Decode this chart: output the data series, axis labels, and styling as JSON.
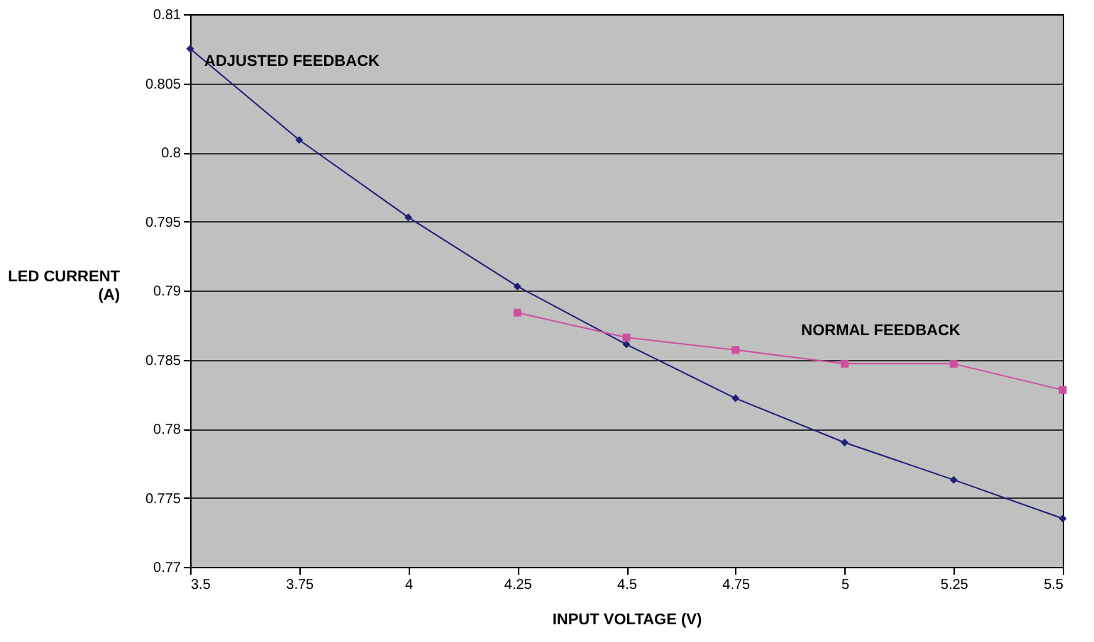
{
  "chart_data": {
    "type": "line",
    "xlabel": "INPUT VOLTAGE (V)",
    "ylabel": "LED CURRENT (A)",
    "x": [
      3.5,
      3.75,
      4,
      4.25,
      4.5,
      4.75,
      5,
      5.25,
      5.5
    ],
    "series": [
      {
        "name": "ADJUSTED FEEDBACK",
        "color": "#1f1f78",
        "marker": "diamond",
        "values": [
          0.8075,
          0.8009,
          0.7953,
          0.7903,
          0.7861,
          0.7822,
          0.779,
          0.7763,
          0.7735
        ]
      },
      {
        "name": "NORMAL FEEDBACK",
        "color": "#cc4fa0",
        "marker": "square",
        "values": [
          null,
          null,
          null,
          0.7884,
          0.7866,
          0.7857,
          0.7847,
          0.7847,
          0.7828
        ]
      }
    ],
    "xlim": [
      3.5,
      5.5
    ],
    "xticks": [
      3.5,
      3.75,
      4,
      4.25,
      4.5,
      4.75,
      5,
      5.25,
      5.5
    ],
    "ylim": [
      0.77,
      0.81
    ],
    "yticks": [
      0.77,
      0.775,
      0.78,
      0.785,
      0.79,
      0.795,
      0.8,
      0.805,
      0.81
    ],
    "grid": "y",
    "legend": false,
    "line_style": "solid"
  }
}
